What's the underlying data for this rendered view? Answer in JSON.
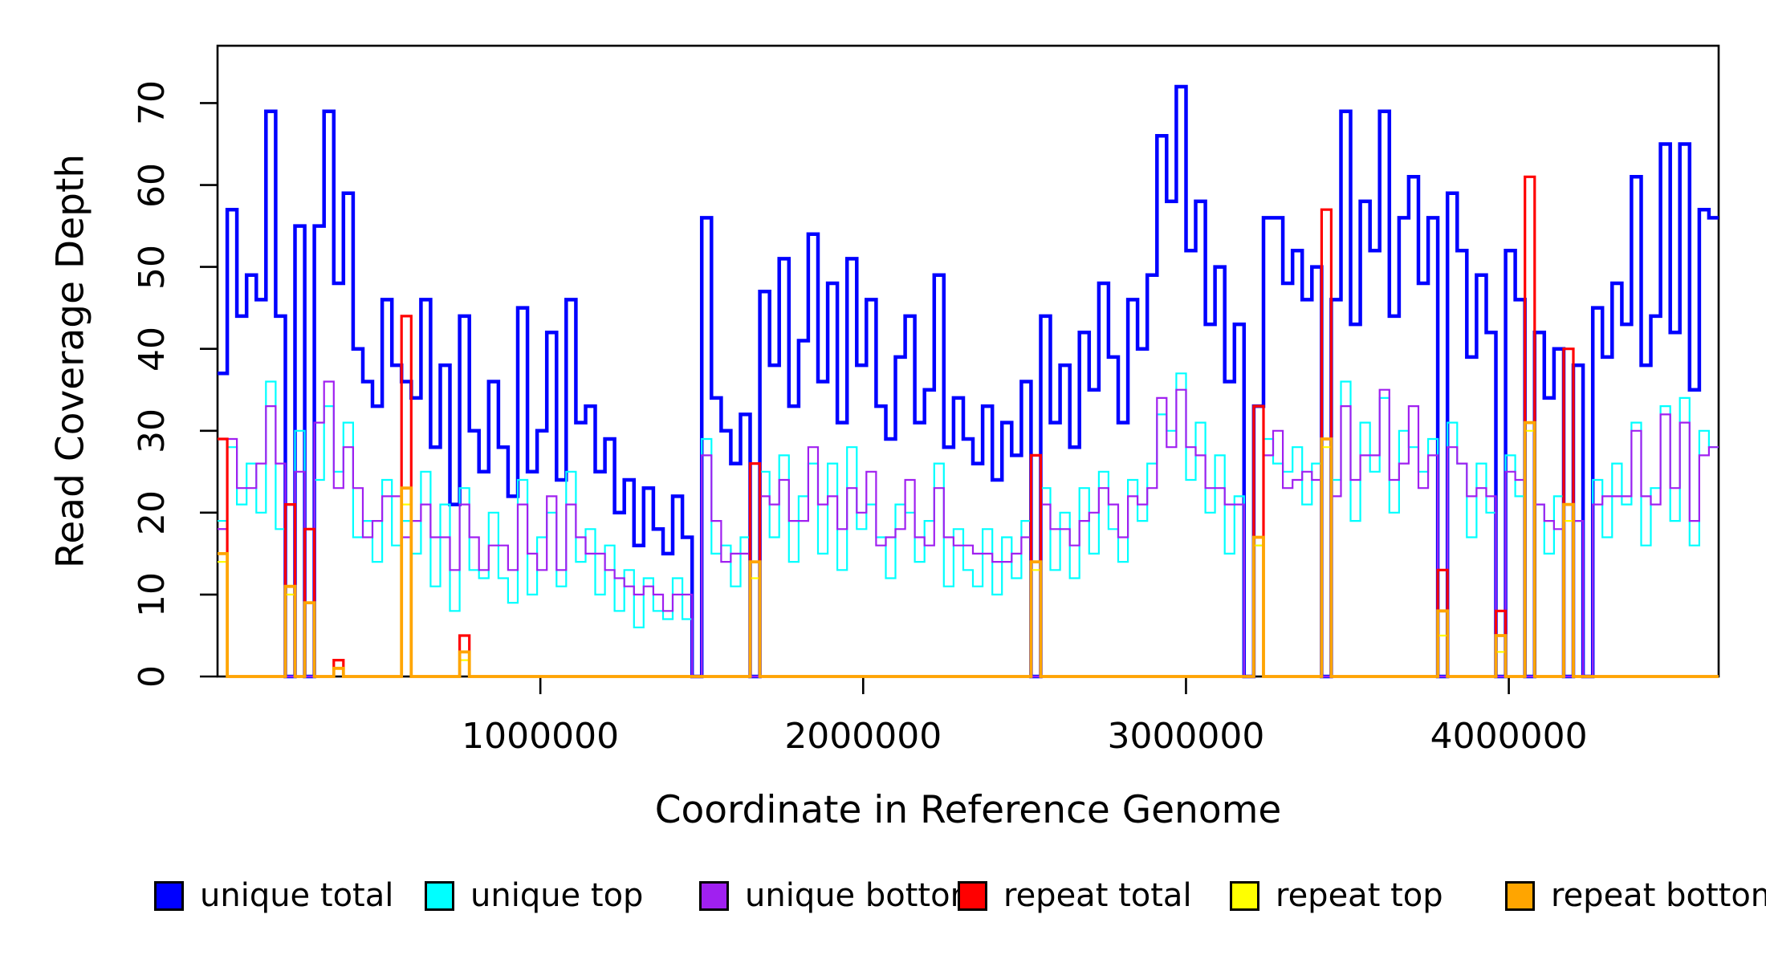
{
  "figure": {
    "xlabel": "Coordinate in Reference Genome",
    "ylabel": "Read Coverage Depth"
  },
  "axes": {
    "x_ticks": [
      {
        "value": 1000000,
        "label": "1000000"
      },
      {
        "value": 2000000,
        "label": "2000000"
      },
      {
        "value": 3000000,
        "label": "3000000"
      },
      {
        "value": 4000000,
        "label": "4000000"
      }
    ],
    "y_ticks": [
      {
        "value": 0,
        "label": "0"
      },
      {
        "value": 10,
        "label": "10"
      },
      {
        "value": 20,
        "label": "20"
      },
      {
        "value": 30,
        "label": "30"
      },
      {
        "value": 40,
        "label": "40"
      },
      {
        "value": 50,
        "label": "50"
      },
      {
        "value": 60,
        "label": "60"
      },
      {
        "value": 70,
        "label": "70"
      }
    ]
  },
  "legend": {
    "items": [
      {
        "label": "unique total",
        "color": "#0000FF"
      },
      {
        "label": "unique top",
        "color": "#00FFFF"
      },
      {
        "label": "unique bottom",
        "color": "#A020F0"
      },
      {
        "label": "repeat total",
        "color": "#FF0000"
      },
      {
        "label": "repeat top",
        "color": "#FFFF00"
      },
      {
        "label": "repeat bottom",
        "color": "#FFA500"
      }
    ]
  },
  "chart_data": {
    "type": "line",
    "subtype": "step",
    "title": "",
    "xlabel": "Coordinate in Reference Genome",
    "ylabel": "Read Coverage Depth",
    "grid": false,
    "legend_position": "bottom",
    "xlim": [
      0,
      4650000
    ],
    "ylim": [
      0,
      77
    ],
    "x_start": 0,
    "bin_size": 30000,
    "n_bins": 155,
    "series": [
      {
        "name": "unique total",
        "color": "#0000FF",
        "width": 4.5,
        "values": [
          37,
          57,
          44,
          49,
          46,
          69,
          44,
          0,
          55,
          0,
          55,
          69,
          48,
          59,
          40,
          36,
          33,
          46,
          38,
          36,
          34,
          46,
          28,
          38,
          21,
          44,
          30,
          25,
          36,
          28,
          22,
          45,
          25,
          30,
          42,
          24,
          46,
          31,
          33,
          25,
          29,
          20,
          24,
          16,
          23,
          18,
          15,
          22,
          17,
          0,
          56,
          34,
          30,
          26,
          32,
          0,
          47,
          38,
          51,
          33,
          41,
          54,
          36,
          48,
          31,
          51,
          38,
          46,
          33,
          29,
          39,
          44,
          31,
          35,
          49,
          28,
          34,
          29,
          26,
          33,
          24,
          31,
          27,
          36,
          0,
          44,
          31,
          38,
          28,
          42,
          35,
          48,
          39,
          31,
          46,
          40,
          49,
          66,
          58,
          72,
          52,
          58,
          43,
          50,
          36,
          43,
          0,
          33,
          56,
          56,
          48,
          52,
          46,
          50,
          0,
          46,
          69,
          43,
          58,
          52,
          69,
          44,
          56,
          61,
          48,
          56,
          0,
          59,
          52,
          39,
          49,
          42,
          0,
          52,
          46,
          0,
          42,
          34,
          40,
          0,
          38,
          0,
          45,
          39,
          48,
          43,
          61,
          38,
          44,
          65,
          42,
          65,
          35,
          57,
          56
        ]
      },
      {
        "name": "unique top",
        "color": "#00FFFF",
        "width": 2.2,
        "values": [
          19,
          28,
          21,
          26,
          20,
          36,
          18,
          0,
          30,
          0,
          24,
          33,
          25,
          31,
          17,
          19,
          14,
          24,
          16,
          19,
          15,
          25,
          11,
          21,
          8,
          23,
          13,
          12,
          20,
          12,
          9,
          24,
          10,
          17,
          20,
          11,
          25,
          14,
          18,
          10,
          16,
          8,
          13,
          6,
          12,
          8,
          7,
          12,
          7,
          0,
          29,
          15,
          16,
          11,
          17,
          0,
          25,
          17,
          27,
          14,
          22,
          26,
          15,
          26,
          13,
          28,
          18,
          21,
          17,
          12,
          21,
          20,
          14,
          19,
          26,
          11,
          18,
          13,
          11,
          18,
          10,
          17,
          12,
          19,
          0,
          23,
          13,
          20,
          12,
          23,
          15,
          25,
          18,
          14,
          24,
          19,
          26,
          32,
          30,
          37,
          24,
          31,
          20,
          27,
          15,
          22,
          0,
          16,
          29,
          26,
          25,
          28,
          21,
          26,
          0,
          24,
          36,
          19,
          31,
          25,
          34,
          20,
          30,
          28,
          25,
          29,
          0,
          31,
          26,
          17,
          26,
          20,
          0,
          27,
          22,
          0,
          21,
          15,
          22,
          0,
          19,
          0,
          24,
          17,
          26,
          21,
          31,
          16,
          23,
          33,
          19,
          34,
          16,
          30,
          28
        ]
      },
      {
        "name": "unique bottom",
        "color": "#A020F0",
        "width": 2.2,
        "values": [
          18,
          29,
          23,
          23,
          26,
          33,
          26,
          0,
          25,
          0,
          31,
          36,
          23,
          28,
          23,
          17,
          19,
          22,
          22,
          17,
          19,
          21,
          17,
          17,
          13,
          21,
          17,
          13,
          16,
          16,
          13,
          21,
          15,
          13,
          22,
          13,
          21,
          17,
          15,
          15,
          13,
          12,
          11,
          10,
          11,
          10,
          8,
          10,
          10,
          0,
          27,
          19,
          14,
          15,
          15,
          0,
          22,
          21,
          24,
          19,
          19,
          28,
          21,
          22,
          18,
          23,
          20,
          25,
          16,
          17,
          18,
          24,
          17,
          16,
          23,
          17,
          16,
          16,
          15,
          15,
          14,
          14,
          15,
          17,
          0,
          21,
          18,
          18,
          16,
          19,
          20,
          23,
          21,
          17,
          22,
          21,
          23,
          34,
          28,
          35,
          28,
          27,
          23,
          23,
          21,
          21,
          0,
          17,
          27,
          30,
          23,
          24,
          25,
          24,
          0,
          22,
          33,
          24,
          27,
          27,
          35,
          24,
          26,
          33,
          23,
          27,
          0,
          28,
          26,
          22,
          23,
          22,
          0,
          25,
          24,
          0,
          21,
          19,
          18,
          0,
          19,
          0,
          21,
          22,
          22,
          22,
          30,
          22,
          21,
          32,
          23,
          31,
          19,
          27,
          28
        ]
      },
      {
        "name": "repeat total",
        "color": "#FF0000",
        "width": 3.2,
        "baseline": 0,
        "spikes": [
          {
            "bin": 0,
            "value": 29
          },
          {
            "bin": 7,
            "value": 21
          },
          {
            "bin": 9,
            "value": 18
          },
          {
            "bin": 12,
            "value": 2
          },
          {
            "bin": 19,
            "value": 44
          },
          {
            "bin": 25,
            "value": 5
          },
          {
            "bin": 55,
            "value": 26
          },
          {
            "bin": 84,
            "value": 27
          },
          {
            "bin": 107,
            "value": 33
          },
          {
            "bin": 114,
            "value": 57
          },
          {
            "bin": 126,
            "value": 13
          },
          {
            "bin": 132,
            "value": 8
          },
          {
            "bin": 135,
            "value": 61
          },
          {
            "bin": 139,
            "value": 40
          }
        ]
      },
      {
        "name": "repeat top",
        "color": "#FFFF00",
        "width": 2.2,
        "baseline": 0,
        "spikes": [
          {
            "bin": 0,
            "value": 14
          },
          {
            "bin": 7,
            "value": 10
          },
          {
            "bin": 9,
            "value": 9
          },
          {
            "bin": 12,
            "value": 1
          },
          {
            "bin": 19,
            "value": 21
          },
          {
            "bin": 25,
            "value": 2
          },
          {
            "bin": 55,
            "value": 12
          },
          {
            "bin": 84,
            "value": 13
          },
          {
            "bin": 107,
            "value": 16
          },
          {
            "bin": 114,
            "value": 28
          },
          {
            "bin": 126,
            "value": 5
          },
          {
            "bin": 132,
            "value": 3
          },
          {
            "bin": 135,
            "value": 30
          },
          {
            "bin": 139,
            "value": 19
          }
        ]
      },
      {
        "name": "repeat bottom",
        "color": "#FFA500",
        "width": 3.8,
        "baseline": 0,
        "spikes": [
          {
            "bin": 0,
            "value": 15
          },
          {
            "bin": 7,
            "value": 11
          },
          {
            "bin": 9,
            "value": 9
          },
          {
            "bin": 12,
            "value": 1
          },
          {
            "bin": 19,
            "value": 23
          },
          {
            "bin": 25,
            "value": 3
          },
          {
            "bin": 55,
            "value": 14
          },
          {
            "bin": 84,
            "value": 14
          },
          {
            "bin": 107,
            "value": 17
          },
          {
            "bin": 114,
            "value": 29
          },
          {
            "bin": 126,
            "value": 8
          },
          {
            "bin": 132,
            "value": 5
          },
          {
            "bin": 135,
            "value": 31
          },
          {
            "bin": 139,
            "value": 21
          }
        ]
      }
    ]
  }
}
